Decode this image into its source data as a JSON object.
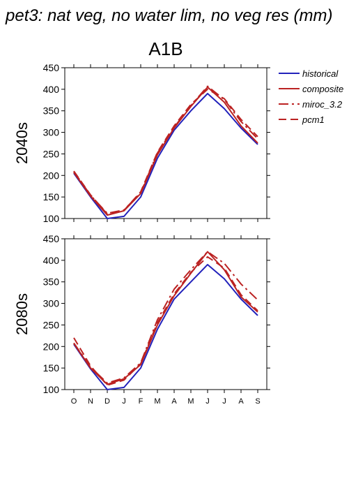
{
  "title": "pet3: nat veg, no water lim, no veg res (mm)",
  "scenario": "A1B",
  "legend": [
    {
      "label": "historical",
      "color": "#2222bb",
      "dash": "solid"
    },
    {
      "label": "composite",
      "color": "#bb2222",
      "dash": "solid"
    },
    {
      "label": "miroc_3.2",
      "color": "#bb2222",
      "dash": "dashdot"
    },
    {
      "label": "pcm1",
      "color": "#bb2222",
      "dash": "dash"
    }
  ],
  "chart_data": [
    {
      "type": "line",
      "row_label": "2040s",
      "categories": [
        "O",
        "N",
        "D",
        "J",
        "F",
        "M",
        "A",
        "M",
        "J",
        "J",
        "A",
        "S"
      ],
      "ylim": [
        100,
        450
      ],
      "yticks": [
        100,
        150,
        200,
        250,
        300,
        350,
        400,
        450
      ],
      "series": [
        {
          "name": "historical",
          "values": [
            205,
            150,
            100,
            105,
            150,
            240,
            305,
            350,
            390,
            355,
            310,
            272
          ]
        },
        {
          "name": "composite",
          "values": [
            207,
            152,
            108,
            118,
            158,
            248,
            310,
            360,
            405,
            370,
            315,
            275
          ]
        },
        {
          "name": "miroc_3.2",
          "values": [
            209,
            154,
            112,
            120,
            160,
            252,
            312,
            362,
            407,
            376,
            325,
            285
          ]
        },
        {
          "name": "pcm1",
          "values": [
            210,
            155,
            110,
            119,
            162,
            254,
            315,
            365,
            400,
            378,
            330,
            290
          ]
        }
      ]
    },
    {
      "type": "line",
      "row_label": "2080s",
      "categories": [
        "O",
        "N",
        "D",
        "J",
        "F",
        "M",
        "A",
        "M",
        "J",
        "J",
        "A",
        "S"
      ],
      "ylim": [
        100,
        450
      ],
      "yticks": [
        100,
        150,
        200,
        250,
        300,
        350,
        400,
        450
      ],
      "series": [
        {
          "name": "historical",
          "values": [
            205,
            148,
            100,
            105,
            150,
            240,
            310,
            350,
            390,
            357,
            310,
            272
          ]
        },
        {
          "name": "composite",
          "values": [
            207,
            150,
            112,
            125,
            158,
            250,
            318,
            370,
            420,
            378,
            315,
            280
          ]
        },
        {
          "name": "miroc_3.2",
          "values": [
            208,
            152,
            115,
            127,
            162,
            262,
            333,
            378,
            420,
            393,
            345,
            308
          ]
        },
        {
          "name": "pcm1",
          "values": [
            220,
            155,
            110,
            122,
            160,
            255,
            322,
            372,
            408,
            382,
            320,
            283
          ]
        }
      ]
    }
  ]
}
